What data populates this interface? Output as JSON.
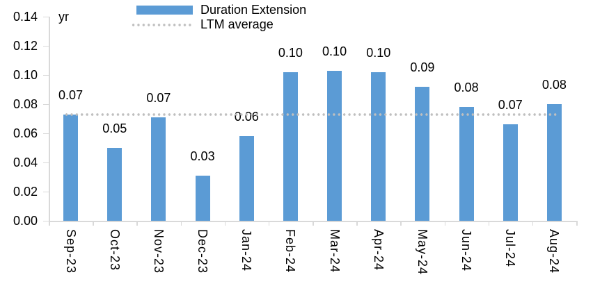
{
  "legend": {
    "items": [
      {
        "label": "Duration Extension",
        "swatch": "bar"
      },
      {
        "label": "LTM average",
        "swatch": "dotted-line"
      }
    ]
  },
  "colors": {
    "bar": "#5B9BD5",
    "dotted_line": "#BFBFBF",
    "axis": "#D9D9D9",
    "text": "#000000"
  },
  "chart_data": {
    "type": "bar",
    "title": "",
    "unit_label": "yr",
    "xlabel": "",
    "ylabel": "yr",
    "categories": [
      "Sep-23",
      "Oct-23",
      "Nov-23",
      "Dec-23",
      "Jan-24",
      "Feb-24",
      "Mar-24",
      "Apr-24",
      "May-24",
      "Jun-24",
      "Jul-24",
      "Aug-24"
    ],
    "series": [
      {
        "name": "Duration Extension",
        "values": [
          0.073,
          0.05,
          0.071,
          0.031,
          0.058,
          0.102,
          0.103,
          0.102,
          0.092,
          0.078,
          0.066,
          0.08
        ],
        "data_labels": [
          "0.07",
          "0.05",
          "0.07",
          "0.03",
          "0.06",
          "0.10",
          "0.10",
          "0.10",
          "0.09",
          "0.08",
          "0.07",
          "0.08"
        ]
      }
    ],
    "overlay_line": {
      "name": "LTM average",
      "value": 0.073,
      "style": "dotted"
    },
    "ylim": [
      0,
      0.14
    ],
    "y_tick_step": 0.02,
    "y_tick_labels": [
      "0.00",
      "0.02",
      "0.04",
      "0.06",
      "0.08",
      "0.10",
      "0.12",
      "0.14"
    ],
    "grid": false,
    "legend_position": "top"
  }
}
